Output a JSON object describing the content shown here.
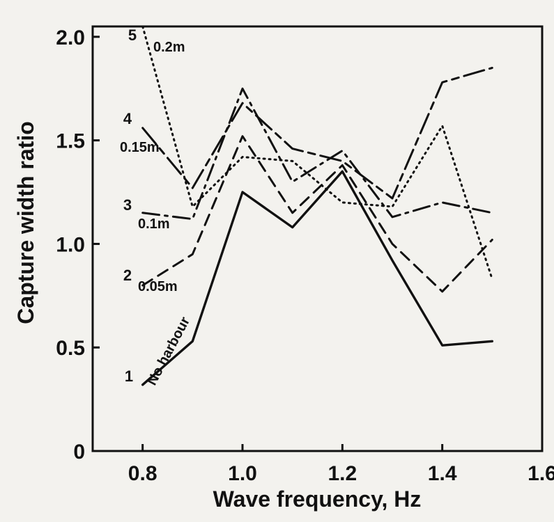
{
  "chart_data": {
    "type": "line",
    "xlabel": "Wave frequency, Hz",
    "ylabel": "Capture width ratio",
    "xlim": [
      0.7,
      1.6
    ],
    "ylim": [
      0,
      2.05
    ],
    "x_ticks": [
      "0.8",
      "1.0",
      "1.2",
      "1.4",
      "1.6"
    ],
    "y_ticks": [
      "0",
      "0.5",
      "1.0",
      "1.5",
      "2.0"
    ],
    "grid": false,
    "legend": "none",
    "series": [
      {
        "name": "1",
        "label": "No harbour",
        "style": "solid",
        "x": [
          0.8,
          0.9,
          1.0,
          1.1,
          1.2,
          1.3,
          1.4,
          1.5
        ],
        "y": [
          0.32,
          0.53,
          1.25,
          1.08,
          1.35,
          0.92,
          0.51,
          0.53
        ]
      },
      {
        "name": "2",
        "label": "0.05m",
        "style": "dashed",
        "x": [
          0.8,
          0.9,
          1.0,
          1.1,
          1.2,
          1.3,
          1.4,
          1.5
        ],
        "y": [
          0.8,
          0.95,
          1.52,
          1.15,
          1.38,
          1.0,
          0.77,
          1.02
        ]
      },
      {
        "name": "3",
        "label": "0.1m",
        "style": "dashdot",
        "x": [
          0.8,
          0.9,
          1.0,
          1.1,
          1.2,
          1.3,
          1.4,
          1.5
        ],
        "y": [
          1.15,
          1.12,
          1.75,
          1.3,
          1.45,
          1.13,
          1.2,
          1.15
        ]
      },
      {
        "name": "4",
        "label": "0.15m",
        "style": "longdash",
        "x": [
          0.8,
          0.9,
          1.0,
          1.1,
          1.2,
          1.3,
          1.4,
          1.5
        ],
        "y": [
          1.56,
          1.27,
          1.68,
          1.46,
          1.4,
          1.22,
          1.78,
          1.85
        ]
      },
      {
        "name": "5",
        "label": "0.2m",
        "style": "dotted",
        "x": [
          0.8,
          0.9,
          1.0,
          1.1,
          1.2,
          1.3,
          1.4,
          1.5
        ],
        "y": [
          2.05,
          1.18,
          1.42,
          1.4,
          1.2,
          1.18,
          1.57,
          0.83
        ]
      }
    ]
  }
}
